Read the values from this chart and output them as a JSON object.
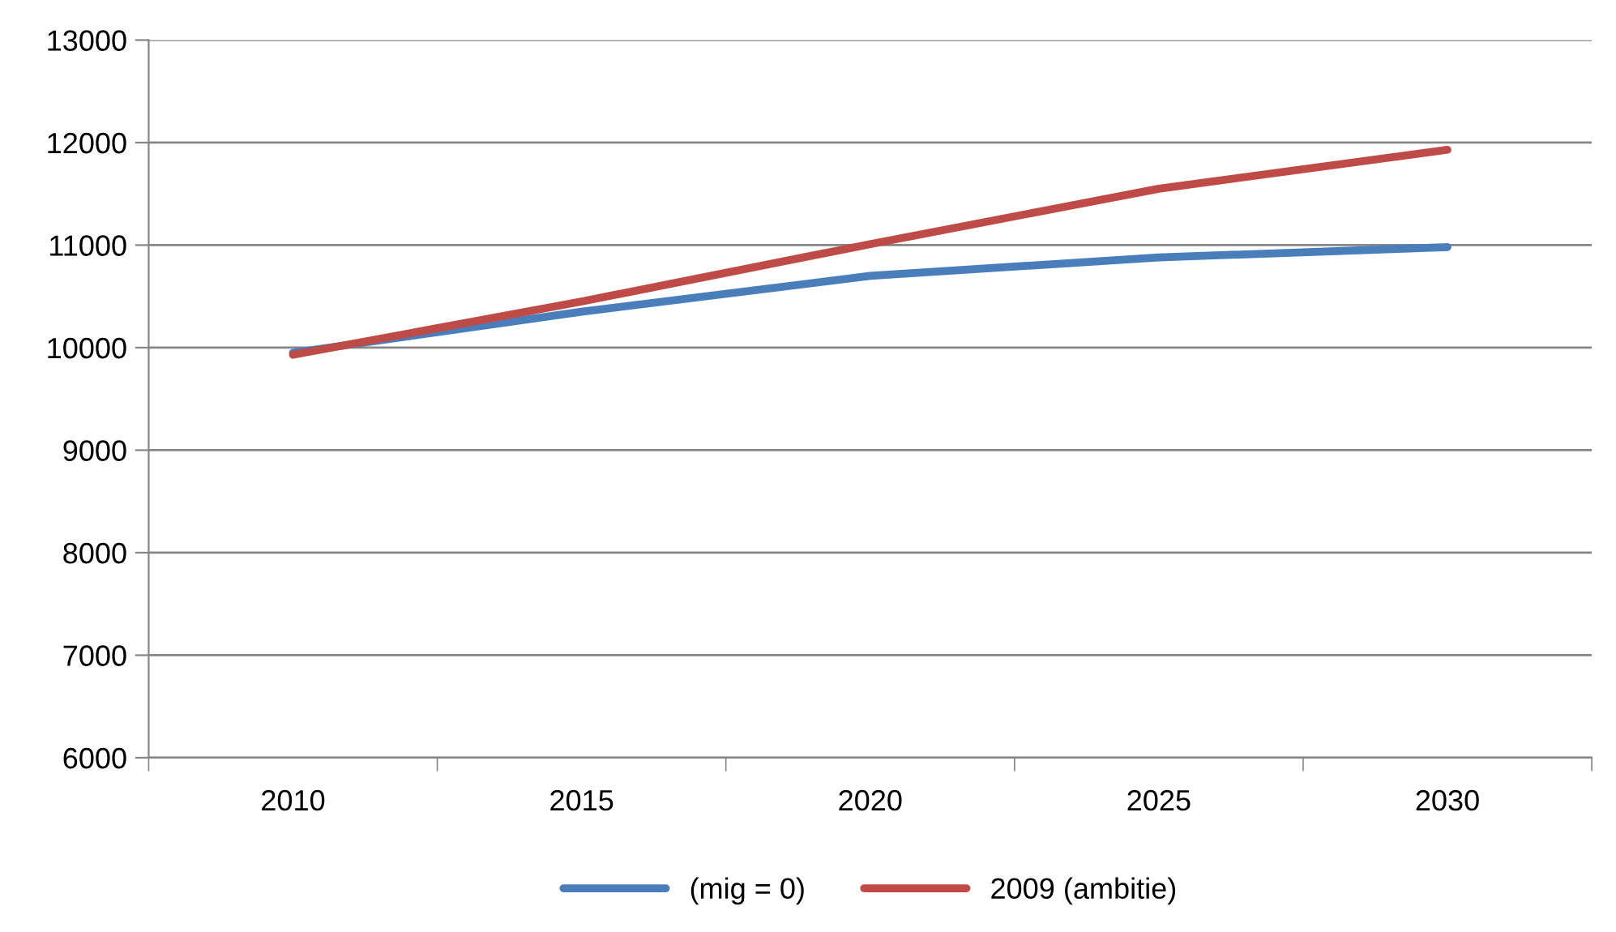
{
  "chart_data": {
    "type": "line",
    "categories": [
      "2010",
      "2015",
      "2020",
      "2025",
      "2030"
    ],
    "series": [
      {
        "name": "(mig = 0)",
        "color": "#4a7ebb",
        "values": [
          9950,
          10350,
          10700,
          10880,
          10980
        ]
      },
      {
        "name": "2009 (ambitie)",
        "color": "#be4b48",
        "values": [
          9930,
          10450,
          11010,
          11550,
          11930
        ]
      }
    ],
    "ylim": [
      6000,
      13000
    ],
    "yticks": [
      6000,
      7000,
      8000,
      9000,
      10000,
      11000,
      12000,
      13000
    ],
    "grid": "y",
    "legend": "bottom",
    "marker": "none",
    "line_style": "solid"
  }
}
